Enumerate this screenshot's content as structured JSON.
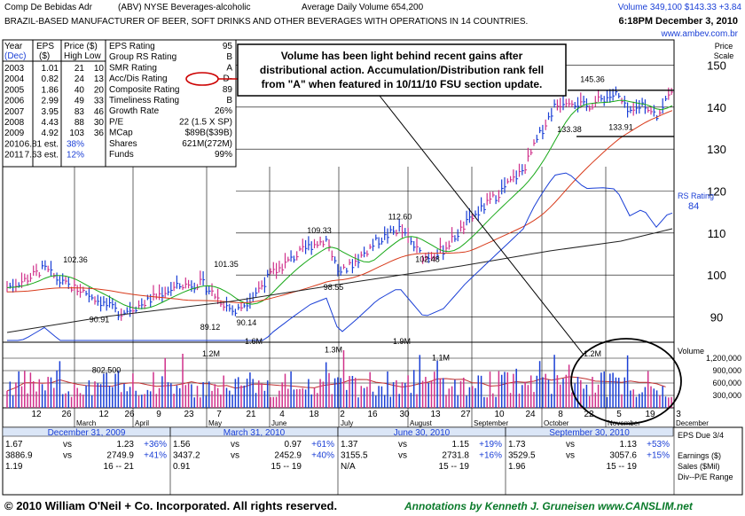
{
  "header": {
    "company": "Comp De Bebidas Adr",
    "ticker_exchange": "(ABV)  NYSE  Beverages-alcoholic",
    "avg_volume": "Average Daily Volume 654,200",
    "price_line": "Volume 349,100  $143.33  +3.84",
    "description": "BRAZIL-BASED MANUFACTURER OF BEER, SOFT DRINKS AND OTHER   BEVERAGES WITH OPERATIONS IN 14 COUNTRIES.",
    "datetime": "6:18PM December 3, 2010",
    "website": "www.ambev.com.br"
  },
  "eps_table": {
    "headers": [
      "Year",
      "(Dec)",
      "EPS",
      "($)",
      "Price ($)",
      "High Low"
    ],
    "rows": [
      {
        "year": "2003",
        "eps": "1.01",
        "high": "21",
        "low": "10"
      },
      {
        "year": "2004",
        "eps": "0.82",
        "high": "24",
        "low": "13"
      },
      {
        "year": "2005",
        "eps": "1.86",
        "high": "40",
        "low": "20"
      },
      {
        "year": "2006",
        "eps": "2.99",
        "high": "49",
        "low": "33"
      },
      {
        "year": "2007",
        "eps": "3.95",
        "high": "83",
        "low": "46"
      },
      {
        "year": "2008",
        "eps": "4.43",
        "high": "88",
        "low": "30"
      },
      {
        "year": "2009",
        "eps": "4.92",
        "high": "103",
        "low": "36"
      },
      {
        "year": "2010",
        "eps": "6.81 est.",
        "high": "38%",
        "low": ""
      },
      {
        "year": "2011",
        "eps": "7.63 est.",
        "high": "12%",
        "low": ""
      }
    ]
  },
  "ratings": [
    {
      "label": "EPS Rating",
      "value": "95"
    },
    {
      "label": "Group RS Rating",
      "value": "B"
    },
    {
      "label": "SMR Rating",
      "value": "A"
    },
    {
      "label": "Acc/Dis Rating",
      "value": "D-"
    },
    {
      "label": "Composite Rating",
      "value": "89"
    },
    {
      "label": "Timeliness Rating",
      "value": "B"
    },
    {
      "label": "Growth Rate",
      "value": "26%"
    },
    {
      "label": "P/E",
      "value": "22 (1.5 X SP)"
    },
    {
      "label": "MCap",
      "value": "$89B($39B)"
    },
    {
      "label": "Shares",
      "value": "621M(272M)"
    },
    {
      "label": "Funds",
      "value": "99%"
    }
  ],
  "annotation": {
    "lines": [
      "Volume has been light behind recent gains after",
      "distributional action.  Accumulation/Distribution rank fell",
      "from \"A\" when featured in 10/11/10 FSU section update."
    ]
  },
  "colors": {
    "up_bar": "#1a3fd6",
    "down_bar": "#d0308a",
    "ma50": "#18a818",
    "ma200": "#d83a1a",
    "long_ma": "#222222",
    "rs_line": "#1a3fd6",
    "volume_ma": "#c03030",
    "link": "#1a3fd6",
    "oval": "#cc0000"
  },
  "chart_data": {
    "type": "bar",
    "price_axis": {
      "title_line1": "Price",
      "title_line2": "Scale",
      "ticks": [
        90,
        100,
        110,
        120,
        130,
        140,
        150
      ],
      "ylim": [
        84,
        156
      ]
    },
    "volume_axis": {
      "title": "Volume",
      "ticks": [
        "1,200,000",
        "900,000",
        "600,000",
        "300,000"
      ],
      "tick_values": [
        1200000,
        900000,
        600000,
        300000
      ],
      "ylim": [
        0,
        1500000
      ]
    },
    "date_axis": {
      "day_labels": [
        "12",
        "26",
        "12",
        "26",
        "9",
        "23",
        "7",
        "21",
        "4",
        "18",
        "2",
        "16",
        "30",
        "13",
        "27",
        "10",
        "24",
        "8",
        "22",
        "5",
        "19",
        "3"
      ],
      "month_labels": [
        "March",
        "April",
        "May",
        "June",
        "July",
        "August",
        "September",
        "October",
        "November",
        "December"
      ]
    },
    "price_labels": [
      {
        "text": "102.36",
        "value": 102.36
      },
      {
        "text": "90.91",
        "value": 90.91
      },
      {
        "text": "89.12",
        "value": 89.12
      },
      {
        "text": "101.35",
        "value": 101.35
      },
      {
        "text": "90.14",
        "value": 90.14
      },
      {
        "text": "109.33",
        "value": 109.33
      },
      {
        "text": "98.55",
        "value": 98.55
      },
      {
        "text": "112.60",
        "value": 112.6
      },
      {
        "text": "102.48",
        "value": 102.48
      },
      {
        "text": "145.36",
        "value": 145.36
      },
      {
        "text": "133.38",
        "value": 133.38
      },
      {
        "text": "133.91",
        "value": 133.91
      }
    ],
    "volume_labels": [
      {
        "text": "802,500",
        "value": 802500
      },
      {
        "text": "1.2M",
        "value": 1200000
      },
      {
        "text": "1.6M",
        "value": 1600000
      },
      {
        "text": "1.3M",
        "value": 1300000
      },
      {
        "text": "1.9M",
        "value": 1900000
      },
      {
        "text": "1.1M",
        "value": 1100000
      },
      {
        "text": "1.2M",
        "value": 1200000
      }
    ],
    "rs_label": "RS Rating",
    "rs_value": "84",
    "base_lines": {
      "top": 144,
      "bottom": 133
    }
  },
  "quarters": [
    {
      "period": "December 31, 2009",
      "row1": [
        "1.67",
        "vs",
        "1.23",
        "+36%"
      ],
      "row2": [
        "3886.9",
        "vs",
        "2749.9",
        "+41%"
      ],
      "row3": [
        "1.19",
        "",
        "16 -- 21",
        ""
      ]
    },
    {
      "period": "March 31, 2010",
      "row1": [
        "1.56",
        "vs",
        "0.97",
        "+61%"
      ],
      "row2": [
        "3437.2",
        "vs",
        "2452.9",
        "+40%"
      ],
      "row3": [
        "0.91",
        "",
        "15 -- 19",
        ""
      ]
    },
    {
      "period": "June 30, 2010",
      "row1": [
        "1.37",
        "vs",
        "1.15",
        "+19%"
      ],
      "row2": [
        "3155.5",
        "vs",
        "2731.8",
        "+16%"
      ],
      "row3": [
        "N/A",
        "",
        "15 -- 19",
        ""
      ]
    },
    {
      "period": "September 30, 2010",
      "row1": [
        "1.73",
        "vs",
        "1.13",
        "+53%"
      ],
      "row2": [
        "3529.5",
        "vs",
        "3057.6",
        "+15%"
      ],
      "row3": [
        "1.96",
        "",
        "15 -- 19",
        ""
      ]
    }
  ],
  "quarter_side": {
    "title": "EPS Due 3/4",
    "labels": [
      "Earnings ($)",
      "Sales ($Mil)",
      "Div--P/E Range"
    ]
  },
  "footer": {
    "copyright": "© 2010 William O'Neil + Co. Incorporated. All rights reserved.",
    "annotations_by": "Annotations by Kenneth J. Gruneisen www.CANSLIM.net"
  }
}
